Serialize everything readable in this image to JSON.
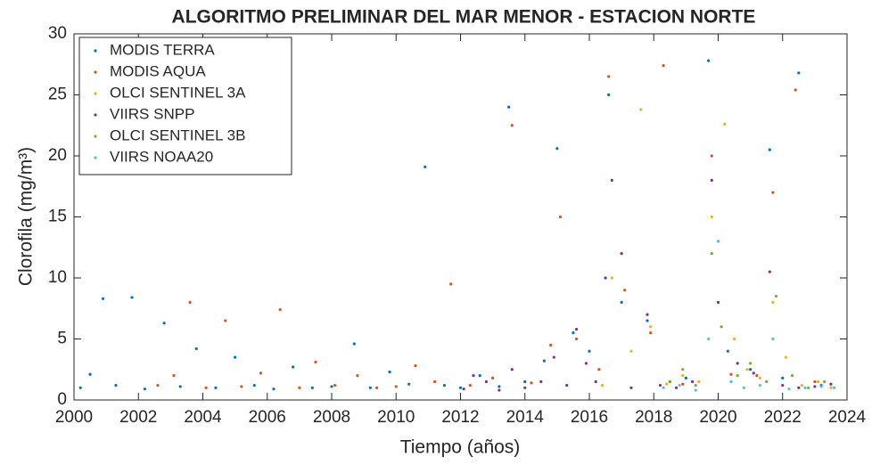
{
  "chart_data": {
    "type": "scatter",
    "title": "ALGORITMO PRELIMINAR DEL MAR MENOR - ESTACION NORTE",
    "x_label": "Tiempo (años)",
    "y_label": "Clorofila (mg/m³)",
    "xlim": [
      2000,
      2024
    ],
    "xticks": [
      2000,
      2002,
      2004,
      2006,
      2008,
      2010,
      2012,
      2014,
      2016,
      2018,
      2020,
      2022,
      2024
    ],
    "ylim": [
      0,
      30
    ],
    "yticks": [
      0,
      5,
      10,
      15,
      20,
      25,
      30
    ],
    "grid": false,
    "legend": "upper-left",
    "series": [
      {
        "name": "MODIS TERRA",
        "color": "#0072bd",
        "x": [
          2000.2,
          2000.5,
          2000.9,
          2001.3,
          2001.8,
          2002.2,
          2002.8,
          2003.3,
          2003.8,
          2004.4,
          2005.0,
          2005.6,
          2006.2,
          2006.8,
          2007.4,
          2008.0,
          2008.7,
          2009.2,
          2009.8,
          2010.4,
          2010.9,
          2011.5,
          2012.0,
          2012.6,
          2013.2,
          2013.5,
          2014.0,
          2014.6,
          2015.0,
          2015.5,
          2016.0,
          2016.6,
          2017.0,
          2017.8,
          2018.5,
          2019.0,
          2019.7,
          2020.3,
          2021.0,
          2021.6,
          2022.0,
          2022.5,
          2023.2
        ],
        "values": [
          1.0,
          2.1,
          8.3,
          1.2,
          8.4,
          0.9,
          6.3,
          1.1,
          4.2,
          1.0,
          3.5,
          1.2,
          0.9,
          2.7,
          1.0,
          1.1,
          4.6,
          1.0,
          2.3,
          1.3,
          19.1,
          1.2,
          1.0,
          2.0,
          1.1,
          24.0,
          1.5,
          3.2,
          20.6,
          5.5,
          4.0,
          25.0,
          8.0,
          6.5,
          1.5,
          1.8,
          27.8,
          4.0,
          2.5,
          20.5,
          1.8,
          26.8,
          1.2
        ]
      },
      {
        "name": "MODIS AQUA",
        "color": "#d95319",
        "x": [
          2002.6,
          2003.1,
          2003.6,
          2004.1,
          2004.7,
          2005.2,
          2005.8,
          2006.4,
          2007.0,
          2007.5,
          2008.1,
          2008.8,
          2009.4,
          2010.0,
          2010.6,
          2011.2,
          2011.7,
          2012.3,
          2013.0,
          2013.6,
          2014.2,
          2014.8,
          2015.1,
          2015.6,
          2016.3,
          2016.6,
          2017.1,
          2017.9,
          2018.3,
          2018.9,
          2019.8,
          2020.4,
          2021.2,
          2021.7,
          2022.4,
          2023.0
        ],
        "values": [
          1.2,
          2.0,
          8.0,
          1.0,
          6.5,
          1.1,
          2.2,
          7.4,
          1.0,
          3.1,
          1.2,
          2.0,
          1.0,
          1.1,
          2.8,
          1.5,
          9.5,
          1.2,
          1.8,
          22.5,
          1.4,
          4.5,
          15.0,
          5.0,
          2.5,
          26.5,
          9.0,
          5.5,
          27.4,
          1.3,
          20.0,
          2.1,
          2.0,
          17.0,
          25.4,
          1.5
        ]
      },
      {
        "name": "OLCI SENTINEL 3A",
        "color": "#edb120",
        "x": [
          2016.4,
          2016.7,
          2017.3,
          2017.6,
          2017.9,
          2018.4,
          2018.9,
          2019.4,
          2019.8,
          2020.2,
          2020.5,
          2020.9,
          2021.3,
          2021.7,
          2022.1,
          2022.6,
          2023.1,
          2023.5
        ],
        "values": [
          1.2,
          10.0,
          4.0,
          23.8,
          6.0,
          1.3,
          2.0,
          1.5,
          15.0,
          22.6,
          5.0,
          2.5,
          1.8,
          8.0,
          3.5,
          1.2,
          1.5,
          1.0
        ]
      },
      {
        "name": "VIIRS SNPP",
        "color": "#7e2f8e",
        "x": [
          2012.1,
          2012.4,
          2012.8,
          2013.2,
          2013.6,
          2014.0,
          2014.5,
          2014.9,
          2015.3,
          2015.6,
          2015.9,
          2016.2,
          2016.5,
          2016.7,
          2017.0,
          2017.3,
          2017.8,
          2018.2,
          2018.7,
          2019.2,
          2019.8,
          2020.0,
          2020.6,
          2021.1,
          2021.6,
          2022.0,
          2022.5,
          2023.0,
          2023.5
        ],
        "values": [
          0.9,
          2.0,
          1.5,
          0.8,
          2.5,
          1.0,
          1.5,
          3.5,
          1.2,
          5.8,
          3.0,
          1.5,
          10.0,
          18.0,
          12.0,
          1.0,
          7.0,
          1.2,
          1.0,
          1.5,
          18.0,
          8.0,
          3.0,
          2.2,
          10.5,
          1.2,
          1.0,
          1.1,
          1.3
        ]
      },
      {
        "name": "OLCI SENTINEL 3B",
        "color": "#77ac30",
        "x": [
          2018.5,
          2018.9,
          2019.3,
          2019.8,
          2020.1,
          2020.6,
          2021.0,
          2021.5,
          2021.8,
          2022.3,
          2022.8,
          2023.3
        ],
        "values": [
          1.5,
          2.5,
          1.2,
          12.0,
          6.0,
          2.0,
          3.0,
          1.5,
          8.5,
          2.0,
          1.0,
          1.5
        ]
      },
      {
        "name": "VIIRS NOAA20",
        "color": "#4dbeee",
        "x": [
          2018.3,
          2018.8,
          2019.3,
          2019.7,
          2020.0,
          2020.4,
          2020.8,
          2021.3,
          2021.7,
          2022.2,
          2022.7,
          2023.2,
          2023.6
        ],
        "values": [
          1.0,
          1.2,
          0.8,
          5.0,
          13.0,
          1.5,
          1.0,
          1.2,
          5.0,
          0.9,
          1.0,
          1.1,
          1.0
        ]
      }
    ]
  }
}
